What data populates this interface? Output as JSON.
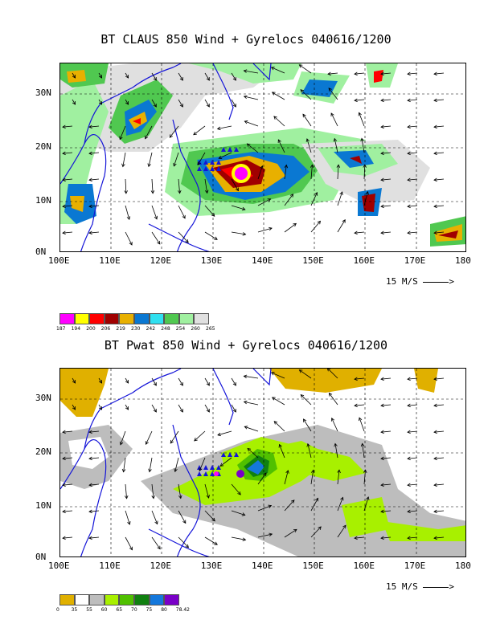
{
  "panel1": {
    "title": "BT CLAUS 850 Wind + Gyrelocs 040616/1200",
    "x_ticks": [
      "100E",
      "110E",
      "120E",
      "130E",
      "140E",
      "150E",
      "160E",
      "170E",
      "180"
    ],
    "y_ticks": [
      "30N",
      "20N",
      "10N",
      "0N"
    ],
    "ref_vector": "15 M/S",
    "legend": {
      "colors": [
        "#ff00ff",
        "#ffff00",
        "#ff0000",
        "#a00000",
        "#e8b000",
        "#0a78d2",
        "#30e0f0",
        "#50c850",
        "#a0f0a0",
        "#e0e0e0"
      ],
      "labels": [
        "187",
        "194",
        "200",
        "206",
        "219",
        "230",
        "242",
        "248",
        "254",
        "260",
        "265"
      ]
    }
  },
  "panel2": {
    "title": "BT Pwat 850 Wind + Gyrelocs 040616/1200",
    "x_ticks": [
      "100E",
      "110E",
      "120E",
      "130E",
      "140E",
      "150E",
      "160E",
      "170E",
      "180"
    ],
    "y_ticks": [
      "30N",
      "20N",
      "10N",
      "0N"
    ],
    "ref_vector": "15 M/S",
    "legend": {
      "colors": [
        "#e0b000",
        "#ffffff",
        "#bdbdbd",
        "#a8f000",
        "#50c000",
        "#108010",
        "#1478dc",
        "#7a00c8"
      ],
      "labels": [
        "0",
        "35",
        "55",
        "60",
        "65",
        "70",
        "75",
        "80",
        "78.42"
      ]
    }
  }
}
